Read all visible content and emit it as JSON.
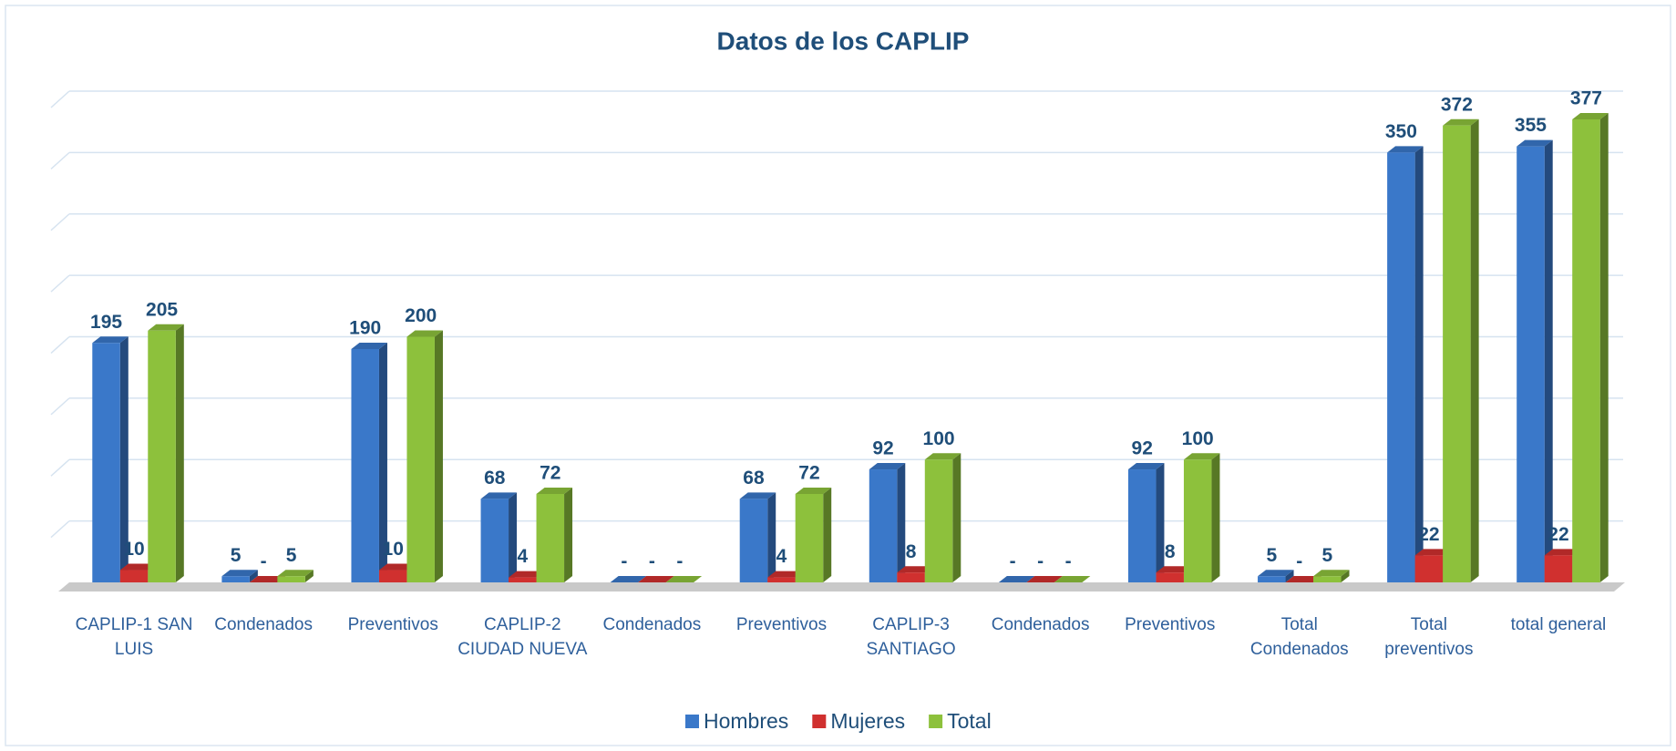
{
  "chart_data": {
    "type": "bar3d",
    "title": "Datos de los CAPLIP",
    "categories": [
      "CAPLIP-1 SAN LUIS",
      "Condenados",
      "Preventivos",
      "CAPLIP-2 CIUDAD NUEVA",
      "Condenados",
      "Preventivos",
      "CAPLIP-3 SANTIAGO",
      "Condenados",
      "Preventivos",
      "Total Condenados",
      "Total preventivos",
      "total general"
    ],
    "series": [
      {
        "name": "Hombres",
        "color": "#3a78c9",
        "values": [
          195,
          5,
          190,
          68,
          0,
          68,
          92,
          0,
          92,
          5,
          350,
          355
        ],
        "value_labels": [
          "195",
          "5",
          "190",
          "68",
          "-",
          "68",
          "92",
          "-",
          "92",
          "5",
          "350",
          "355"
        ]
      },
      {
        "name": "Mujeres",
        "color": "#d0302f",
        "values": [
          10,
          0,
          10,
          4,
          0,
          4,
          8,
          0,
          8,
          0,
          22,
          22
        ],
        "value_labels": [
          "10",
          "-",
          "10",
          "4",
          "-",
          "4",
          "8",
          "-",
          "8",
          "-",
          "22",
          "22"
        ]
      },
      {
        "name": "Total",
        "color": "#8dc13c",
        "values": [
          205,
          5,
          200,
          72,
          0,
          72,
          100,
          0,
          100,
          5,
          372,
          377
        ],
        "value_labels": [
          "205",
          "5",
          "200",
          "72",
          "-",
          "72",
          "100",
          "-",
          "100",
          "5",
          "372",
          "377"
        ]
      }
    ],
    "ylim": [
      0,
      400
    ],
    "yticks": [
      0,
      50,
      100,
      150,
      200,
      250,
      300,
      350,
      400
    ],
    "grid": true,
    "legend": "bottom"
  }
}
